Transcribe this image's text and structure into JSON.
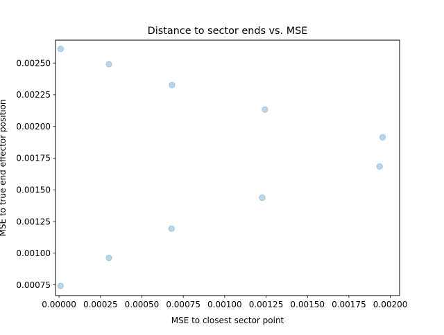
{
  "chart_data": {
    "type": "scatter",
    "title": "Distance to sector ends vs. MSE",
    "xlabel": "MSE to closest sector point",
    "ylabel": "MSE to true end effector position",
    "xlim": [
      -2.14e-05,
      0.0020562
    ],
    "ylim": [
      0.000666,
      0.002681
    ],
    "x_ticks": [
      0.0,
      0.00025,
      0.0005,
      0.00075,
      0.001,
      0.00125,
      0.0015,
      0.00175,
      0.002
    ],
    "x_tick_labels": [
      "0.00000",
      "0.00025",
      "0.00050",
      "0.00075",
      "0.00100",
      "0.00125",
      "0.00150",
      "0.00175",
      "0.00200"
    ],
    "y_ticks": [
      0.00075,
      0.001,
      0.00125,
      0.0015,
      0.00175,
      0.002,
      0.00225,
      0.0025
    ],
    "y_tick_labels": [
      "0.00075",
      "0.00100",
      "0.00125",
      "0.00150",
      "0.00175",
      "0.00200",
      "0.00225",
      "0.00250"
    ],
    "grid": false,
    "point_color": "#1f77b4",
    "point_alpha": 0.3,
    "points": [
      {
        "x": 9.2e-06,
        "y": 0.002612
      },
      {
        "x": 0.0003014,
        "y": 0.002491
      },
      {
        "x": 0.0006821,
        "y": 0.002327
      },
      {
        "x": 0.0012432,
        "y": 0.002133
      },
      {
        "x": 0.0019534,
        "y": 0.001915
      },
      {
        "x": 0.0019355,
        "y": 0.001684
      },
      {
        "x": 0.0012262,
        "y": 0.001438
      },
      {
        "x": 0.0006791,
        "y": 0.001194
      },
      {
        "x": 0.0003014,
        "y": 0.000963
      },
      {
        "x": 9.2e-06,
        "y": 0.000742
      }
    ]
  }
}
